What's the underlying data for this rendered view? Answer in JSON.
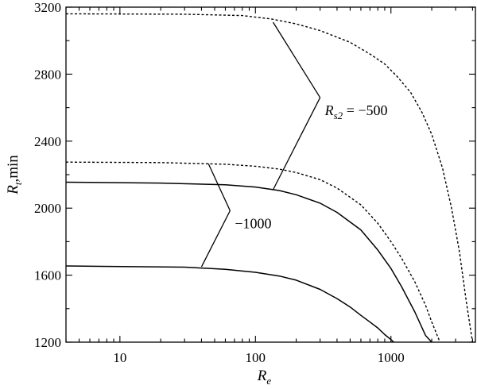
{
  "chart_data": {
    "type": "line",
    "x_scale": "log",
    "xlim": [
      4,
      4200
    ],
    "ylim": [
      1200,
      3200
    ],
    "xlabel": {
      "main": "R",
      "sub": "e"
    },
    "ylabel": {
      "main": "R",
      "sub": "t",
      "suffix": ",min"
    },
    "x_ticks": [
      {
        "value": 10,
        "label": "10"
      },
      {
        "value": 100,
        "label": "100"
      },
      {
        "value": 1000,
        "label": "1000"
      }
    ],
    "y_ticks": [
      {
        "value": 1200,
        "label": "1200"
      },
      {
        "value": 1600,
        "label": "1600"
      },
      {
        "value": 2000,
        "label": "2000"
      },
      {
        "value": 2400,
        "label": "2400"
      },
      {
        "value": 2800,
        "label": "2800"
      },
      {
        "value": 3200,
        "label": "3200"
      }
    ],
    "series": [
      {
        "style": "dashed",
        "x": [
          4,
          20,
          60,
          100,
          150,
          200,
          300,
          400,
          600,
          800,
          1000,
          1200,
          1500,
          1800,
          2000,
          2300
        ],
        "y": [
          2275,
          2272,
          2262,
          2250,
          2233,
          2213,
          2170,
          2120,
          2020,
          1910,
          1800,
          1700,
          1560,
          1420,
          1320,
          1200
        ]
      },
      {
        "style": "dashed",
        "x": [
          4,
          30,
          80,
          130,
          200,
          300,
          500,
          700,
          900,
          1100,
          1400,
          1700,
          2000,
          2400,
          2800,
          3200,
          3600,
          4000
        ],
        "y": [
          3160,
          3158,
          3150,
          3130,
          3100,
          3060,
          2990,
          2920,
          2860,
          2790,
          2690,
          2570,
          2440,
          2240,
          2000,
          1740,
          1440,
          1200
        ]
      },
      {
        "style": "solid",
        "x": [
          4,
          20,
          60,
          100,
          150,
          200,
          300,
          400,
          600,
          800,
          1000,
          1200,
          1500,
          1800,
          2000
        ],
        "y": [
          2155,
          2150,
          2140,
          2126,
          2105,
          2080,
          2030,
          1975,
          1870,
          1750,
          1640,
          1530,
          1380,
          1240,
          1200
        ]
      },
      {
        "style": "solid",
        "x": [
          4,
          30,
          60,
          100,
          150,
          200,
          300,
          400,
          500,
          600,
          700,
          800,
          900,
          1000,
          1050
        ],
        "y": [
          1655,
          1648,
          1635,
          1617,
          1595,
          1570,
          1515,
          1460,
          1410,
          1360,
          1320,
          1285,
          1245,
          1215,
          1200
        ]
      }
    ],
    "annotations": [
      {
        "label_main": "R",
        "label_sub": "s2",
        "label_rest": " = −500",
        "anchor": [
          300,
          2660
        ],
        "targets": [
          [
            135,
            3110
          ],
          [
            135,
            2110
          ]
        ]
      },
      {
        "label_main": "",
        "label_sub": "",
        "label_rest": "−1000",
        "anchor": [
          65,
          1985
        ],
        "targets": [
          [
            45,
            2265
          ],
          [
            40,
            1650
          ]
        ]
      }
    ]
  }
}
